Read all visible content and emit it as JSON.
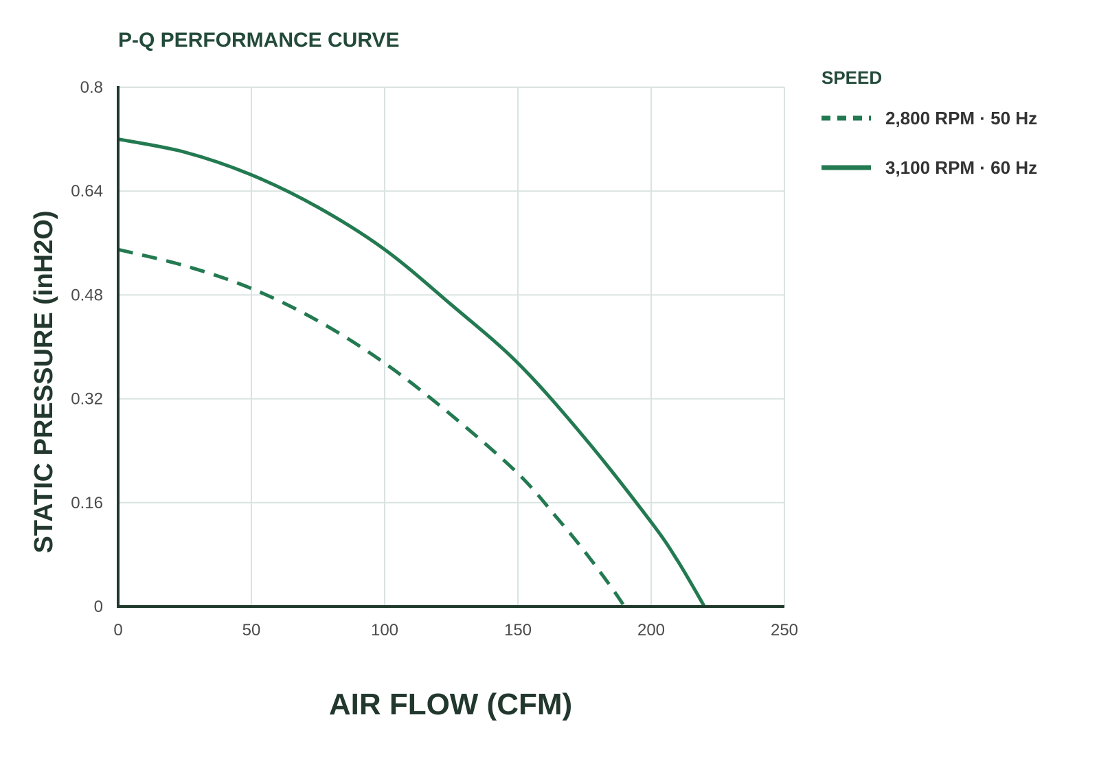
{
  "chart_data": {
    "type": "line",
    "title": "P-Q PERFORMANCE CURVE",
    "xlabel": "AIR FLOW (CFM)",
    "ylabel": "STATIC PRESSURE (inH2O)",
    "xlim": [
      0,
      250
    ],
    "ylim": [
      0,
      0.8
    ],
    "x_ticks": [
      0,
      50,
      100,
      150,
      200,
      250
    ],
    "y_ticks": [
      0,
      0.16,
      0.32,
      0.48,
      0.64,
      0.8
    ],
    "y_tick_labels": [
      "0",
      "0.16",
      "0.32",
      "0.48",
      "0.64",
      "0.8"
    ],
    "grid": true,
    "legend_title": "SPEED",
    "legend_position": "right",
    "series": [
      {
        "name": "2,800 RPM · 50 Hz",
        "style": "dashed",
        "color": "#237a51",
        "x": [
          0,
          25,
          50,
          75,
          100,
          125,
          150,
          165,
          175,
          185,
          190
        ],
        "y": [
          0.55,
          0.525,
          0.49,
          0.44,
          0.375,
          0.295,
          0.205,
          0.135,
          0.085,
          0.03,
          0
        ]
      },
      {
        "name": "3,100 RPM · 60 Hz",
        "style": "solid",
        "color": "#237a51",
        "x": [
          0,
          25,
          50,
          75,
          100,
          125,
          150,
          175,
          200,
          210,
          220
        ],
        "y": [
          0.72,
          0.7,
          0.665,
          0.615,
          0.55,
          0.465,
          0.375,
          0.26,
          0.13,
          0.07,
          0
        ]
      }
    ]
  }
}
